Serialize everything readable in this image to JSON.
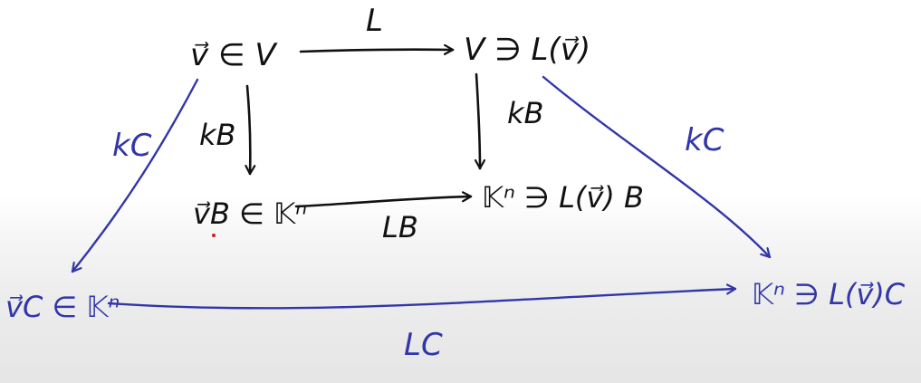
{
  "colors": {
    "ink": "#111111",
    "blue_ink": "#3236a8",
    "red_dot": "#d11a1a"
  },
  "nodes": {
    "top_left": "v⃗ ∈ V",
    "top_right": "V ∋ L(v⃗)",
    "mid_left": "v⃗B ∈ 𝕂ⁿ",
    "mid_right": "𝕂ⁿ ∋ L(v⃗) B",
    "bottom_left": "v⃗C ∈ 𝕂ⁿ",
    "bottom_right": "𝕂ⁿ ∋ L(v⃗)C"
  },
  "edges": {
    "top": "L",
    "left_inner": "kB",
    "right_inner": "kB",
    "middle": "LB",
    "left_outer": "kC",
    "right_outer": "kC",
    "bottom": "LC"
  }
}
